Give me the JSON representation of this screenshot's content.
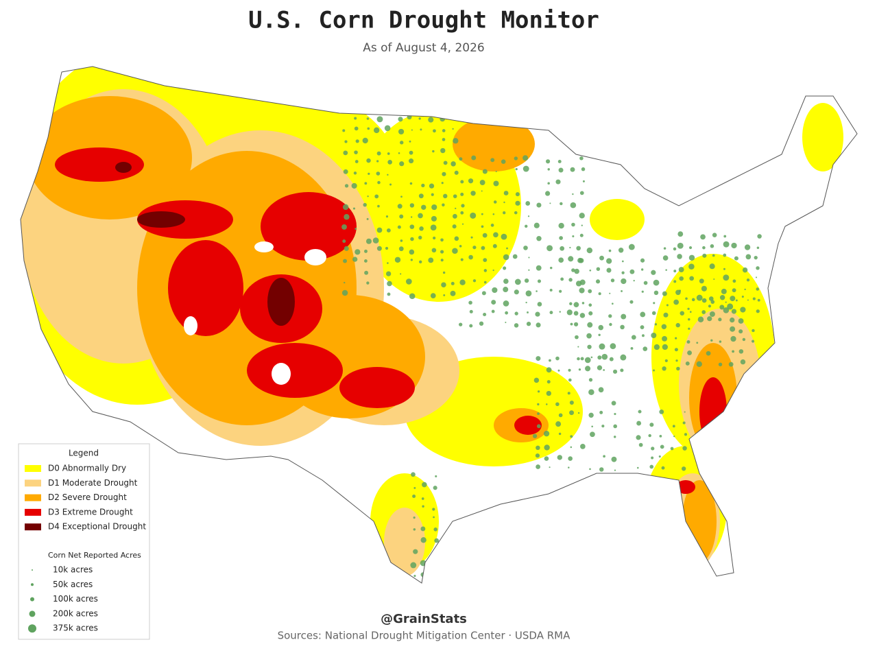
{
  "title": "U.S. Corn Drought Monitor",
  "subtitle": "As of August 4, 2026",
  "legend": {
    "title": "Legend",
    "drought_levels": [
      {
        "label": "D0 Abnormally Dry",
        "color": "#ffff00"
      },
      {
        "label": "D1 Moderate Drought",
        "color": "#fcd37f"
      },
      {
        "label": "D2 Severe Drought",
        "color": "#ffaa00"
      },
      {
        "label": "D3 Extreme Drought",
        "color": "#e60000"
      },
      {
        "label": "D4 Exceptional Drought",
        "color": "#730000"
      }
    ],
    "acres_title": "Corn Net Reported Acres",
    "acres": [
      "10k acres",
      "50k acres",
      "100k acres",
      "200k acres",
      "375k acres"
    ]
  },
  "credit": "@GrainStats",
  "sources": "Sources: National Drought Mitigation Center · USDA RMA"
}
